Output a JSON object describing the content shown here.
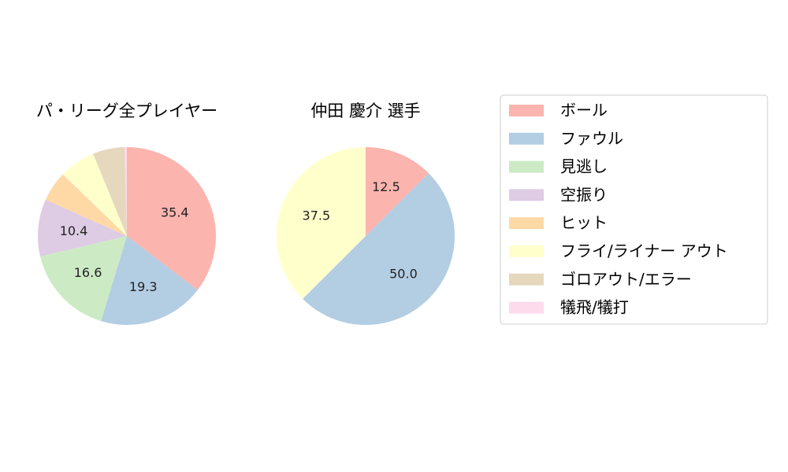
{
  "chart_data": [
    {
      "type": "pie",
      "title": "パ・リーグ全プレイヤー",
      "categories": [
        "ボール",
        "ファウル",
        "見逃し",
        "空振り",
        "ヒット",
        "フライ/ライナー アウト",
        "ゴロアウト/エラー",
        "犠飛/犠打"
      ],
      "values": [
        35.4,
        19.3,
        16.6,
        10.4,
        5.5,
        6.6,
        5.8,
        0.4
      ],
      "data_labels": [
        "35.4",
        "19.3",
        "16.6",
        "10.4",
        "",
        "",
        "",
        ""
      ]
    },
    {
      "type": "pie",
      "title": "仲田 慶介  選手",
      "categories": [
        "ボール",
        "ファウル",
        "見逃し",
        "空振り",
        "ヒット",
        "フライ/ライナー アウト",
        "ゴロアウト/エラー",
        "犠飛/犠打"
      ],
      "values": [
        12.5,
        50.0,
        0,
        0,
        0,
        37.5,
        0,
        0
      ],
      "data_labels": [
        "12.5",
        "50.0",
        "",
        "",
        "",
        "37.5",
        "",
        ""
      ]
    }
  ],
  "legend": {
    "placement": "right",
    "entries": [
      {
        "label": "ボール",
        "color": "#fbb4ae"
      },
      {
        "label": "ファウル",
        "color": "#b3cde3"
      },
      {
        "label": "見逃し",
        "color": "#ccebc5"
      },
      {
        "label": "空振り",
        "color": "#decbe4"
      },
      {
        "label": "ヒット",
        "color": "#fed9a6"
      },
      {
        "label": "フライ/ライナー アウト",
        "color": "#ffffcc"
      },
      {
        "label": "ゴロアウト/エラー",
        "color": "#e5d8bd"
      },
      {
        "label": "犠飛/犠打",
        "color": "#fddaec"
      }
    ]
  }
}
